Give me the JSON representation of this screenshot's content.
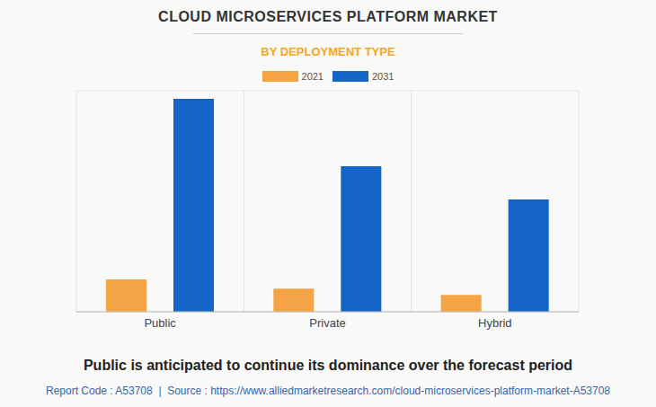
{
  "chart_data": {
    "type": "bar",
    "title": "CLOUD MICROSERVICES PLATFORM MARKET",
    "subtitle": "BY DEPLOYMENT TYPE",
    "categories": [
      "Public",
      "Private",
      "Hybrid"
    ],
    "series": [
      {
        "name": "2021",
        "color": "#f4a444",
        "values": [
          0.88,
          0.63,
          0.46
        ]
      },
      {
        "name": "2031",
        "color": "#1565c6",
        "values": [
          5.78,
          3.95,
          3.05
        ]
      }
    ],
    "ylim": [
      0,
      6
    ],
    "yticks": [
      0,
      1,
      2,
      3,
      4,
      5,
      6
    ],
    "grid": true,
    "tick_labels": "x",
    "annotations": [
      "Public is anticipated to continue its dominance over the forecast period",
      "Report Code : A53708  |  Source : https://www.alliedmarketresearch.com/cloud-microservices-platform-market-A53708"
    ]
  }
}
